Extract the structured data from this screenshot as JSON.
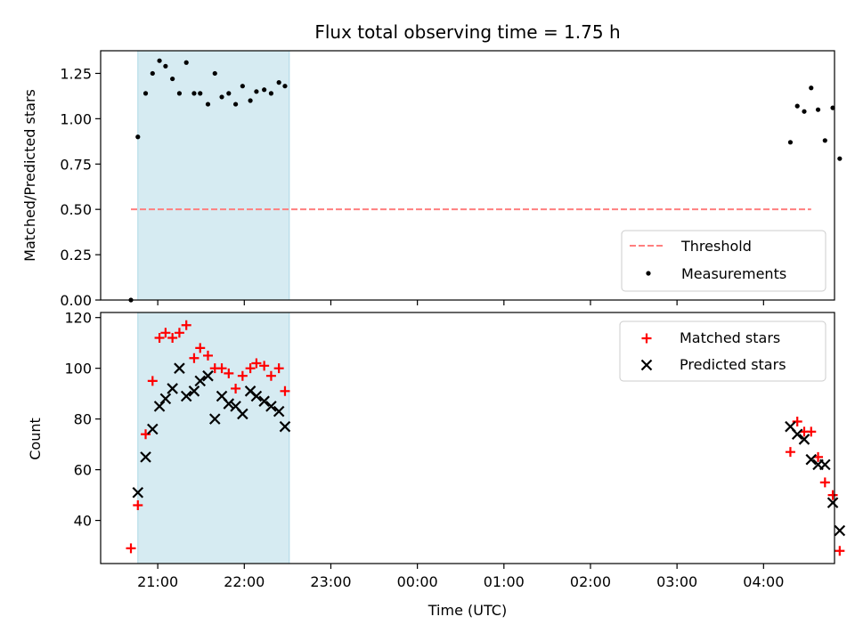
{
  "chart_data": [
    {
      "type": "scatter",
      "title": "Flux total observing time = 1.75 h",
      "xlabel": "",
      "ylabel": "Matched/Predicted stars",
      "xlim": [
        -0.66,
        7.82
      ],
      "ylim": [
        0,
        1.375
      ],
      "yticks": [
        0.0,
        0.25,
        0.5,
        0.75,
        1.0,
        1.25
      ],
      "ytick_labels": [
        "0.00",
        "0.25",
        "0.50",
        "0.75",
        "1.00",
        "1.25"
      ],
      "shaded_interval": [
        -0.23,
        1.52
      ],
      "legend": {
        "placement": "lower-right",
        "entries": [
          "Threshold",
          "Measurements"
        ]
      },
      "series": [
        {
          "name": "Threshold",
          "kind": "dashed-line",
          "color": "#ff7f7f",
          "x": [
            -0.31,
            7.55
          ],
          "y": [
            0.5,
            0.5
          ]
        },
        {
          "name": "Measurements",
          "kind": "dot",
          "color": "#000000",
          "x": [
            -0.31,
            -0.23,
            -0.14,
            -0.06,
            0.02,
            0.09,
            0.17,
            0.25,
            0.33,
            0.42,
            0.49,
            0.58,
            0.66,
            0.74,
            0.82,
            0.9,
            0.98,
            1.07,
            1.14,
            1.23,
            1.31,
            1.4,
            1.47,
            7.31,
            7.39,
            7.47,
            7.55,
            7.63,
            7.71,
            7.8,
            7.88
          ],
          "y": [
            0.0,
            0.9,
            1.14,
            1.25,
            1.32,
            1.29,
            1.22,
            1.14,
            1.31,
            1.14,
            1.14,
            1.08,
            1.25,
            1.12,
            1.14,
            1.08,
            1.18,
            1.1,
            1.15,
            1.16,
            1.14,
            1.2,
            1.18,
            0.87,
            1.07,
            1.04,
            1.17,
            1.05,
            0.88,
            1.06,
            0.78
          ]
        }
      ]
    },
    {
      "type": "scatter",
      "title": "",
      "xlabel": "Time (UTC)",
      "ylabel": "Count",
      "xlim": [
        -0.66,
        7.82
      ],
      "ylim": [
        23,
        122
      ],
      "yticks": [
        40,
        60,
        80,
        100,
        120
      ],
      "ytick_labels": [
        "40",
        "60",
        "80",
        "100",
        "120"
      ],
      "xticks": [
        0,
        1,
        2,
        3,
        4,
        5,
        6,
        7
      ],
      "xtick_labels": [
        "21:00",
        "22:00",
        "23:00",
        "00:00",
        "01:00",
        "02:00",
        "03:00",
        "04:00"
      ],
      "shaded_interval": [
        -0.23,
        1.52
      ],
      "legend": {
        "placement": "upper-right",
        "entries": [
          "Matched stars",
          "Predicted stars"
        ]
      },
      "series": [
        {
          "name": "Matched stars",
          "kind": "plus",
          "color": "#ff0000",
          "x": [
            -0.31,
            -0.23,
            -0.14,
            -0.06,
            0.02,
            0.09,
            0.17,
            0.25,
            0.33,
            0.42,
            0.49,
            0.58,
            0.66,
            0.74,
            0.82,
            0.9,
            0.98,
            1.07,
            1.14,
            1.23,
            1.31,
            1.4,
            1.47,
            7.31,
            7.39,
            7.47,
            7.55,
            7.63,
            7.71,
            7.8,
            7.88
          ],
          "y": [
            29,
            46,
            74,
            95,
            112,
            114,
            112,
            114,
            117,
            104,
            108,
            105,
            100,
            100,
            98,
            92,
            97,
            100,
            102,
            101,
            97,
            100,
            91,
            67,
            79,
            75,
            75,
            65,
            55,
            50,
            28
          ]
        },
        {
          "name": "Predicted stars",
          "kind": "x",
          "color": "#000000",
          "x": [
            -0.23,
            -0.14,
            -0.06,
            0.02,
            0.09,
            0.17,
            0.25,
            0.33,
            0.42,
            0.49,
            0.58,
            0.66,
            0.74,
            0.82,
            0.9,
            0.98,
            1.07,
            1.14,
            1.23,
            1.31,
            1.4,
            1.47,
            7.31,
            7.39,
            7.47,
            7.55,
            7.63,
            7.71,
            7.8,
            7.88
          ],
          "y": [
            51,
            65,
            76,
            85,
            88,
            92,
            100,
            89,
            91,
            95,
            97,
            80,
            89,
            86,
            85,
            82,
            91,
            89,
            87,
            85,
            83,
            77,
            77,
            74,
            72,
            64,
            62,
            62,
            47,
            36
          ]
        }
      ]
    }
  ]
}
